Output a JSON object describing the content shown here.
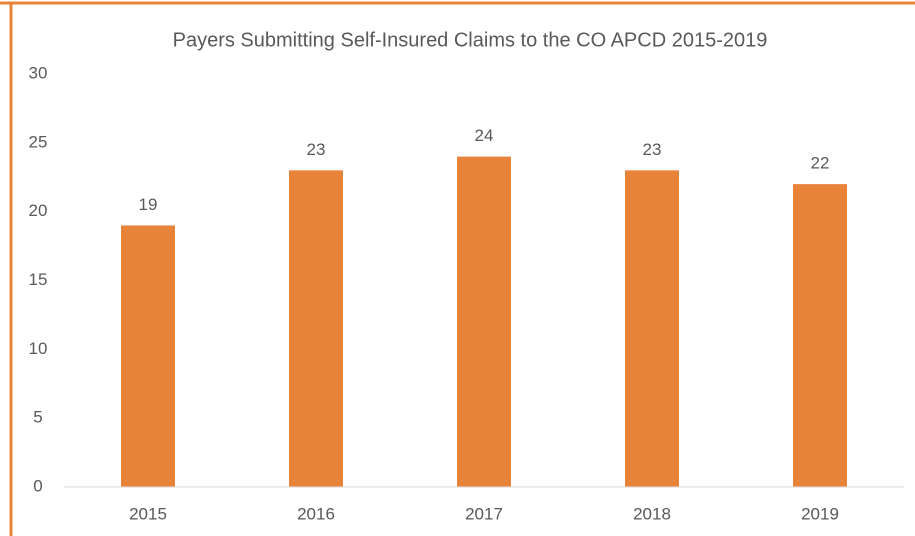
{
  "chart_data": {
    "type": "bar",
    "title": "Payers Submitting Self-Insured Claims to the CO APCD 2015-2019",
    "categories": [
      "2015",
      "2016",
      "2017",
      "2018",
      "2019"
    ],
    "values": [
      19,
      23,
      24,
      23,
      22
    ],
    "color": "#e8833a",
    "ylim": [
      0,
      30
    ],
    "yticks": [
      0,
      5,
      10,
      15,
      20,
      25,
      30
    ],
    "grid": false,
    "data_labels": true
  }
}
